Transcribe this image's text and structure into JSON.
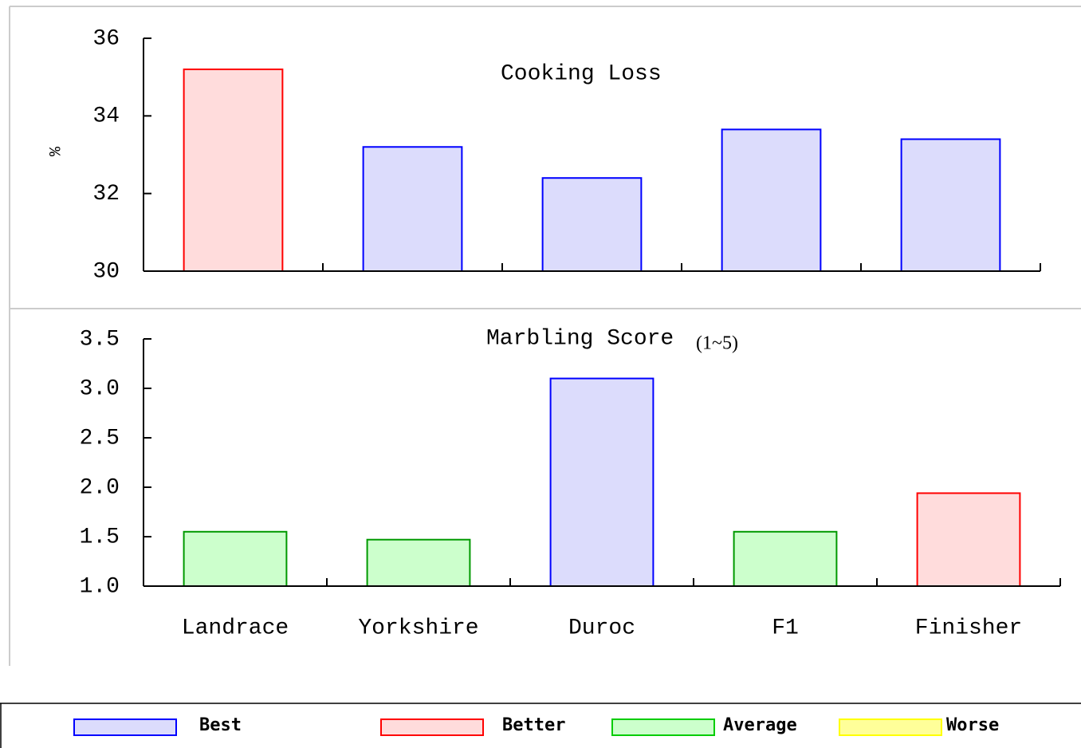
{
  "chart_data": [
    {
      "type": "bar",
      "title": "Cooking Loss",
      "y_label": "%",
      "values": [
        35.2,
        33.2,
        32.4,
        33.65,
        33.4
      ],
      "colors": [
        "#ffdcdc",
        "#dcdcfc",
        "#dcdcfc",
        "#dcdcfc",
        "#dcdcfc"
      ],
      "edge_colors": [
        "#ff0000",
        "#0000ff",
        "#0000ff",
        "#0000ff",
        "#0000ff"
      ],
      "ylim": [
        30,
        36
      ],
      "yticks": [
        30,
        32,
        34,
        36
      ]
    },
    {
      "type": "bar",
      "title": "Marbling Score",
      "subtitle": "(1~5)",
      "categories": [
        "Landrace",
        "Yorkshire",
        "Duroc",
        "F1",
        "Finisher"
      ],
      "values": [
        1.55,
        1.47,
        3.1,
        1.55,
        1.94
      ],
      "colors": [
        "#ccffcc",
        "#ccffcc",
        "#dcdcfc",
        "#ccffcc",
        "#ffdcdc"
      ],
      "edge_colors": [
        "#009900",
        "#009900",
        "#0000ff",
        "#009900",
        "#ff0000"
      ],
      "ylim": [
        1.0,
        3.5
      ],
      "yticks": [
        {
          "value": 1.0,
          "label": "1.0"
        },
        1.5,
        {
          "value": 2.0,
          "label": "2.0"
        },
        2.5,
        {
          "value": 3.0,
          "label": "3.0"
        },
        3.5
      ]
    }
  ],
  "legend": {
    "items": [
      {
        "name": "Best",
        "color": "#dcdcfc",
        "edge": "#0000ff"
      },
      {
        "name": "Better",
        "color": "#ffdcdc",
        "edge": "#ff0000"
      },
      {
        "name": "Average",
        "color": "#ccffcc",
        "edge": "#00cc00"
      },
      {
        "name": "Worse",
        "color": "#ffff99",
        "edge": "#ffff00"
      }
    ]
  }
}
